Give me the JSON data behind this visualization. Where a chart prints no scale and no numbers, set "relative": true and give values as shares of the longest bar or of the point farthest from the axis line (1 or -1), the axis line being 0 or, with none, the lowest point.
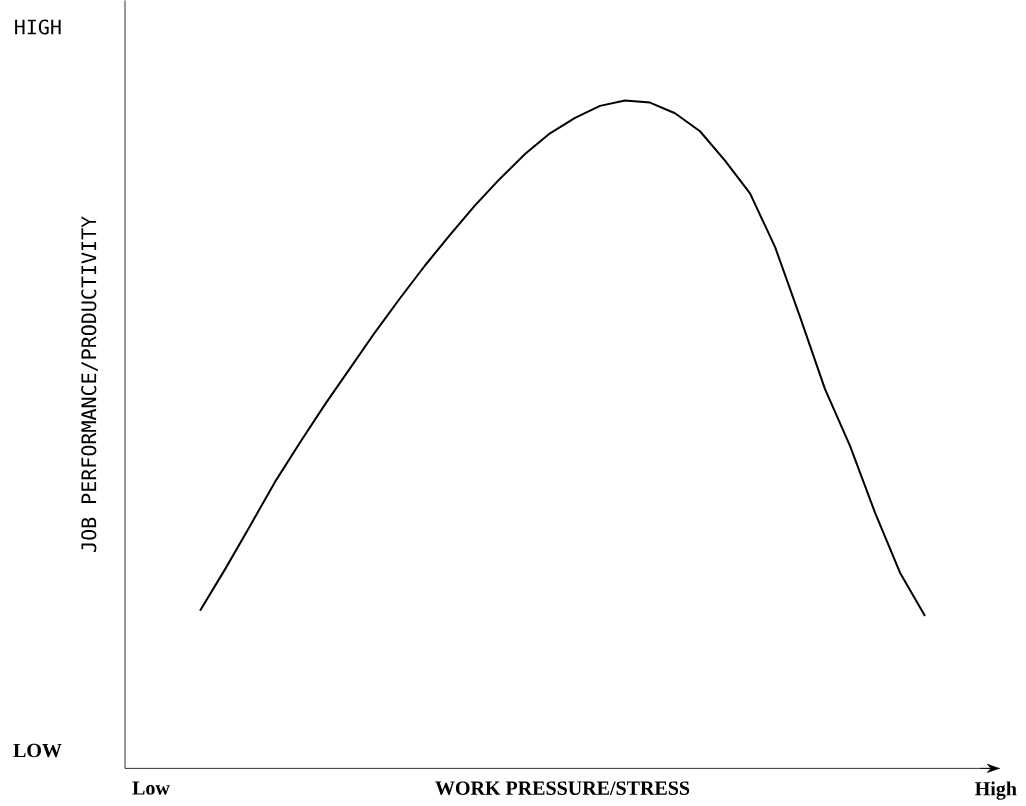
{
  "chart_data": {
    "type": "line",
    "relative": true,
    "xlabel": "WORK PRESSURE/STRESS",
    "ylabel": "JOB PERFORMANCE/PRODUCTIVITY",
    "annotations": [
      "HIGH",
      "LOW",
      "Low",
      "High"
    ],
    "categories": [
      null,
      null,
      null,
      null,
      null,
      null,
      null,
      null,
      null,
      null,
      null,
      null,
      null,
      null,
      null,
      null,
      null,
      null,
      null,
      null,
      null,
      null,
      null,
      null,
      null,
      null,
      null,
      null,
      null,
      null,
      null,
      null,
      null,
      null,
      null,
      null
    ],
    "series": [
      {
        "color": "#000000",
        "values": [
          null,
          null,
          null,
          0.236,
          0.298,
          0.363,
          0.429,
          0.488,
          0.545,
          0.599,
          0.653,
          0.704,
          0.753,
          0.799,
          0.843,
          0.883,
          0.92,
          0.951,
          0.974,
          0.992,
          1,
          0.997,
          0.981,
          0.954,
          0.91,
          0.861,
          0.781,
          0.676,
          0.568,
          0.483,
          0.383,
          0.293,
          0.228,
          null,
          null,
          null
        ]
      }
    ],
    "marker": "none",
    "line_style": "solid"
  }
}
